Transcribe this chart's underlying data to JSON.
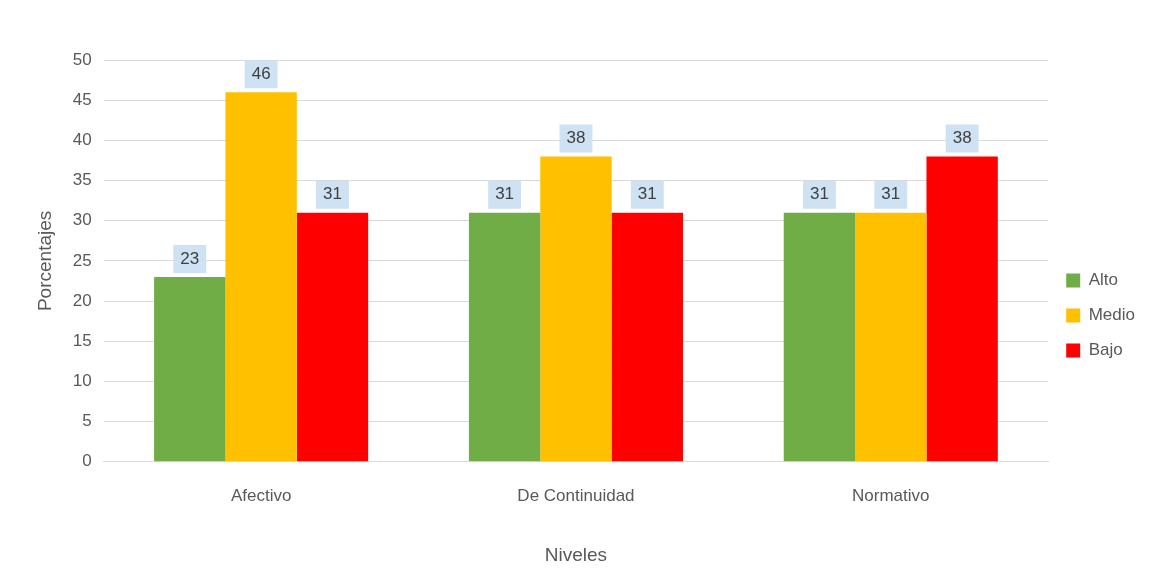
{
  "chart_data": {
    "type": "bar",
    "xlabel": "Niveles",
    "ylabel": "Porcentajes",
    "categories": [
      "Afectivo",
      "De Continuidad",
      "Normativo"
    ],
    "series": [
      {
        "name": "Alto",
        "color": "#70ad47",
        "values": [
          23,
          31,
          31
        ]
      },
      {
        "name": "Medio",
        "color": "#ffc000",
        "values": [
          46,
          38,
          31
        ]
      },
      {
        "name": "Bajo",
        "color": "#ff0000",
        "values": [
          31,
          31,
          38
        ]
      }
    ],
    "ylim": [
      0,
      50
    ],
    "yticks": [
      0,
      5,
      10,
      15,
      20,
      25,
      30,
      35,
      40,
      45,
      50
    ],
    "grid": "y",
    "legend": "right",
    "data_labels": true
  }
}
